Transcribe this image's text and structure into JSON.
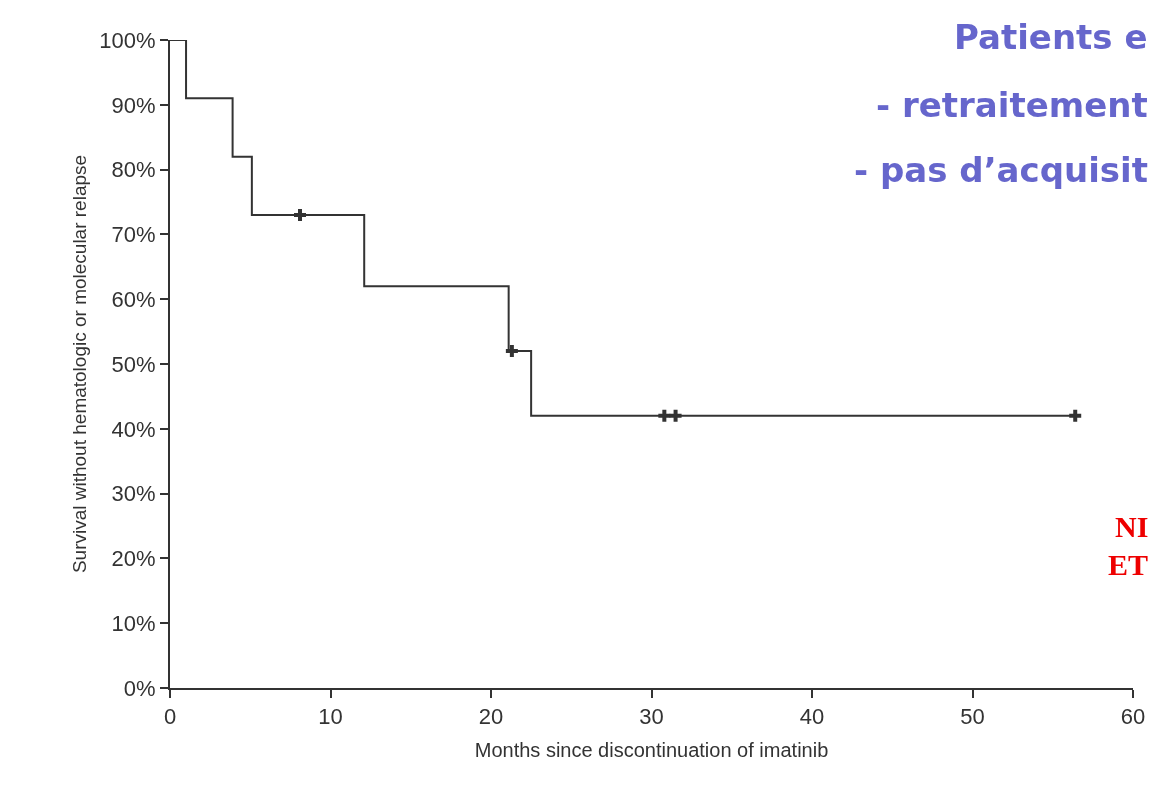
{
  "chart_data": {
    "type": "step",
    "xlabel": "Months since discontinuation of imatinib",
    "ylabel": "Survival without hematologic or molecular relapse",
    "series": [
      {
        "color": "#333333",
        "x": [
          0,
          1,
          3.9,
          5.1,
          12.1,
          21.1,
          22.5,
          56.4
        ],
        "values": [
          100,
          91,
          82,
          73,
          62,
          52,
          42,
          42
        ]
      },
      {
        "type": "scatter",
        "marker": "cross",
        "color": "#333333",
        "x": [
          8.1,
          21.3,
          30.8,
          31.5,
          56.4
        ],
        "values": [
          73,
          52,
          42,
          42,
          42
        ]
      }
    ],
    "xlim": [
      0,
      60
    ],
    "ylim": [
      0,
      100
    ],
    "xticks": [
      0,
      10,
      20,
      30,
      40,
      50,
      60
    ],
    "yticks": [
      {
        "value": 0,
        "label": "0%"
      },
      {
        "value": 10,
        "label": "10%"
      },
      {
        "value": 20,
        "label": "20%"
      },
      {
        "value": 30,
        "label": "30%"
      },
      {
        "value": 40,
        "label": "40%"
      },
      {
        "value": 50,
        "label": "50%"
      },
      {
        "value": 60,
        "label": "60%"
      },
      {
        "value": 70,
        "label": "70%"
      },
      {
        "value": 80,
        "label": "80%"
      },
      {
        "value": 90,
        "label": "90%"
      },
      {
        "value": 100,
        "label": "100%"
      }
    ],
    "annotations": [
      "Patients e",
      "- retraitement",
      "- pas d’acquisit",
      "NI",
      "ET"
    ]
  }
}
